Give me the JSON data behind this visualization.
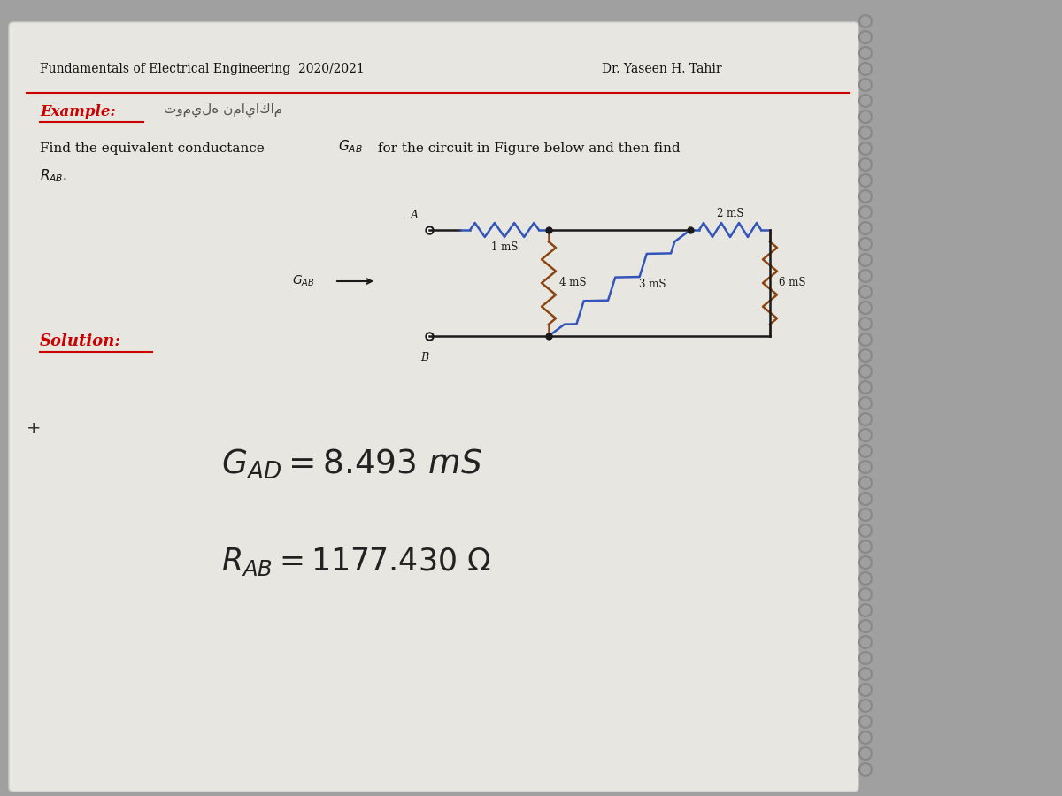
{
  "title_left": "Fundamentals of Electrical Engineering  2020/2021",
  "title_right": "Dr. Yaseen H. Tahir",
  "example_label": "Example:",
  "solution_label": "Solution:",
  "circuit_color": "#1a1a1a",
  "resistor_color_blue": "#3355bb",
  "resistor_color_brown": "#8B4513",
  "conductances": {
    "G1": "1 mS",
    "G2": "2 mS",
    "G3": "4 mS",
    "G4": "3 mS",
    "G5": "6 mS"
  }
}
